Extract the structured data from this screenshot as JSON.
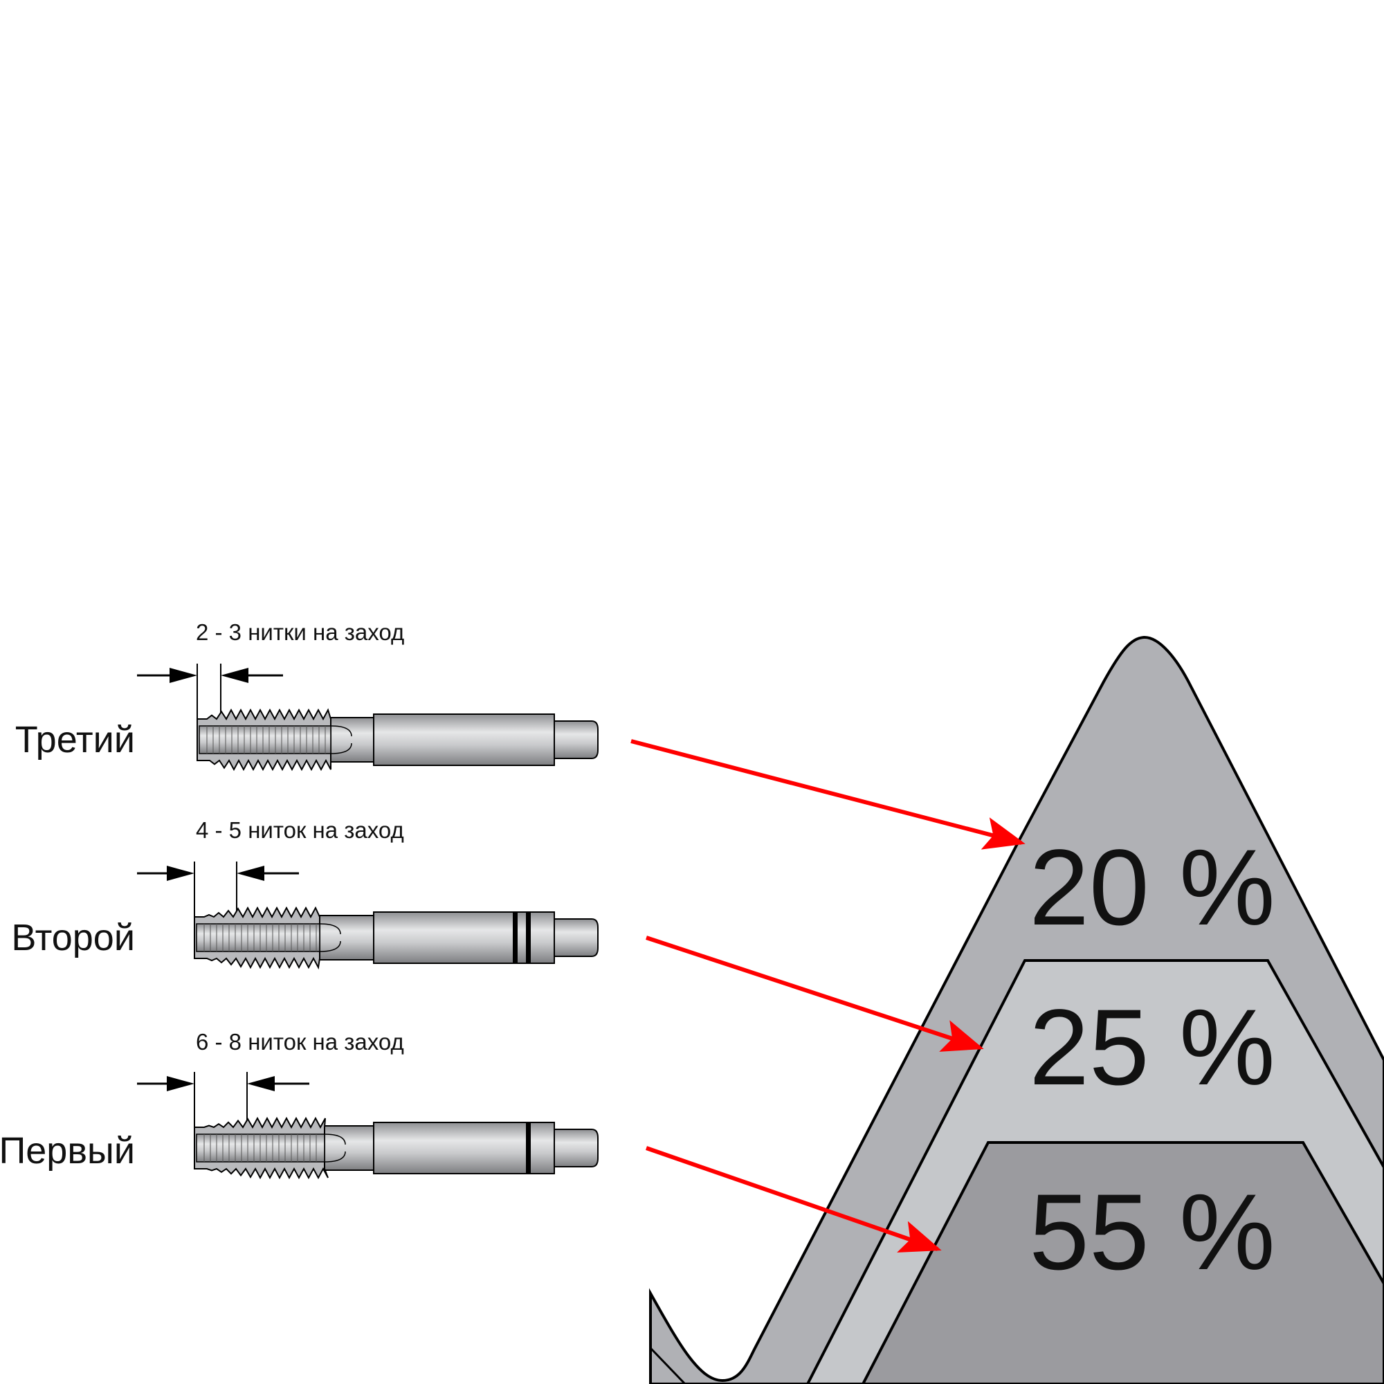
{
  "taps": [
    {
      "name": "Третий",
      "caption": "2 - 3 нитки на заход",
      "chamfer_threads": "2 - 3",
      "rings": 0
    },
    {
      "name": "Второй",
      "caption": "4 - 5 ниток на заход",
      "chamfer_threads": "4 - 5",
      "rings": 2
    },
    {
      "name": "Первый",
      "caption": "6 - 8 ниток на заход",
      "chamfer_threads": "6 - 8",
      "rings": 1
    }
  ],
  "thread_profile": {
    "layers": [
      {
        "label": "20 %",
        "value": 20,
        "color": "#b0b1b5"
      },
      {
        "label": "25 %",
        "value": 25,
        "color": "#c5c7ca"
      },
      {
        "label": "55 %",
        "value": 55,
        "color": "#9b9b9f"
      }
    ]
  },
  "colors": {
    "arrow": "#ff0000",
    "outline": "#000000",
    "tap_metal": "#c8c9cb"
  }
}
